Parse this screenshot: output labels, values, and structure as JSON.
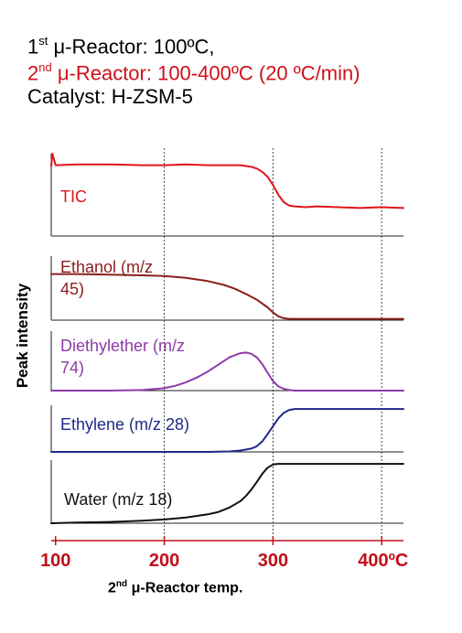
{
  "header": {
    "line1_pre": "1",
    "line1_sup": "st",
    "line1_post": " μ-Reactor: 100ºC,",
    "line2_pre": "2",
    "line2_sup": "nd",
    "line2_post": " μ-Reactor: 100-400ºC (20 ºC/min)",
    "line3": "Catalyst: H-ZSM-5",
    "line2_color": "#d0101a"
  },
  "chart_data": {
    "type": "line",
    "ylabel": "Peak intensity",
    "xlabel_pre": "2",
    "xlabel_sup": "nd",
    "xlabel_post": " μ-Reactor temp.",
    "xlim": [
      96,
      420
    ],
    "x_ticks": [
      {
        "value": 100,
        "label": "100"
      },
      {
        "value": 200,
        "label": "200"
      },
      {
        "value": 300,
        "label": "300"
      },
      {
        "value": 400,
        "label": "400ºC"
      }
    ],
    "vertical_gridlines_at": [
      200,
      300,
      400
    ],
    "tick_color": "#c0101a",
    "panels": [
      {
        "label_lines": [
          "TIC"
        ],
        "color": "#e0141c",
        "x": [
          96,
          97,
          100,
          120,
          150,
          180,
          200,
          220,
          240,
          260,
          270,
          280,
          285,
          290,
          295,
          300,
          305,
          310,
          315,
          320,
          330,
          340,
          360,
          380,
          400,
          420
        ],
        "y": [
          0.85,
          1.0,
          0.86,
          0.87,
          0.87,
          0.86,
          0.86,
          0.87,
          0.86,
          0.86,
          0.86,
          0.84,
          0.82,
          0.78,
          0.72,
          0.62,
          0.5,
          0.41,
          0.37,
          0.36,
          0.35,
          0.36,
          0.35,
          0.34,
          0.35,
          0.34
        ]
      },
      {
        "label_lines": [
          "Ethanol  (m/z",
          "45)"
        ],
        "color": "#8b1e1e",
        "x": [
          96,
          120,
          150,
          180,
          200,
          220,
          240,
          255,
          265,
          275,
          285,
          295,
          300,
          305,
          310,
          315,
          320,
          330,
          360,
          400,
          420
        ],
        "y": [
          0.72,
          0.72,
          0.71,
          0.7,
          0.69,
          0.66,
          0.61,
          0.55,
          0.49,
          0.41,
          0.32,
          0.2,
          0.12,
          0.06,
          0.03,
          0.02,
          0.02,
          0.02,
          0.02,
          0.02,
          0.02
        ]
      },
      {
        "label_lines": [
          "Diethylether (m/z",
          "74)"
        ],
        "color": "#8e3aa7",
        "x": [
          96,
          150,
          180,
          200,
          210,
          220,
          230,
          240,
          250,
          260,
          270,
          275,
          280,
          285,
          290,
          295,
          300,
          305,
          310,
          315,
          320,
          330,
          360,
          400,
          420
        ],
        "y": [
          0.0,
          0.0,
          0.01,
          0.04,
          0.08,
          0.14,
          0.22,
          0.32,
          0.44,
          0.56,
          0.63,
          0.64,
          0.62,
          0.56,
          0.45,
          0.3,
          0.16,
          0.07,
          0.03,
          0.01,
          0.0,
          0.0,
          0.0,
          0.0,
          0.0
        ]
      },
      {
        "label_lines": [
          "Ethylene (m/z 28)"
        ],
        "color": "#1e2a85",
        "x": [
          96,
          150,
          200,
          240,
          260,
          270,
          280,
          285,
          290,
          295,
          300,
          305,
          310,
          315,
          320,
          330,
          360,
          400,
          420
        ],
        "y": [
          0.0,
          0.0,
          0.0,
          0.0,
          0.01,
          0.03,
          0.07,
          0.12,
          0.22,
          0.38,
          0.55,
          0.72,
          0.84,
          0.9,
          0.92,
          0.92,
          0.92,
          0.92,
          0.92
        ]
      },
      {
        "label_lines": [
          "Water  (m/z 18)"
        ],
        "color": "#111111",
        "x": [
          96,
          120,
          150,
          180,
          200,
          220,
          240,
          250,
          260,
          270,
          275,
          280,
          285,
          290,
          295,
          300,
          305,
          310,
          320,
          340,
          360,
          400,
          420
        ],
        "y": [
          0.0,
          0.01,
          0.02,
          0.04,
          0.06,
          0.09,
          0.14,
          0.18,
          0.25,
          0.35,
          0.43,
          0.53,
          0.65,
          0.78,
          0.88,
          0.93,
          0.94,
          0.94,
          0.94,
          0.94,
          0.94,
          0.94,
          0.94
        ]
      }
    ]
  }
}
